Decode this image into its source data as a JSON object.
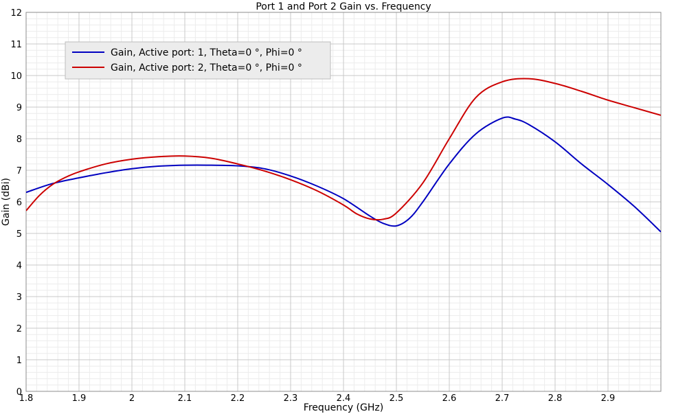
{
  "chart_data": {
    "type": "line",
    "title": "Port 1 and Port 2 Gain vs. Frequency",
    "xlabel": "Frequency (GHz)",
    "ylabel": "Gain (dBi)",
    "xlim": [
      1.8,
      3.0
    ],
    "ylim": [
      0,
      12
    ],
    "x_ticks": [
      1.8,
      1.9,
      2.0,
      2.1,
      2.2,
      2.3,
      2.4,
      2.5,
      2.6,
      2.7,
      2.8,
      2.9
    ],
    "x_tick_labels": [
      "1.8",
      "1.9",
      "2",
      "2.1",
      "2.2",
      "2.3",
      "2.4",
      "2.5",
      "2.6",
      "2.7",
      "2.8",
      "2.9"
    ],
    "y_ticks": [
      0,
      1,
      2,
      3,
      4,
      5,
      6,
      7,
      8,
      9,
      10,
      11,
      12
    ],
    "y_tick_labels": [
      "0",
      "1",
      "2",
      "3",
      "4",
      "5",
      "6",
      "7",
      "8",
      "9",
      "10",
      "11",
      "12"
    ],
    "grid": true,
    "minor_grid": true,
    "legend_position": "top-left",
    "series": [
      {
        "name": "Gain, Active port: 1, Theta=0 °, Phi=0 °",
        "color": "#0000c0",
        "x": [
          1.8,
          1.85,
          1.9,
          1.95,
          2.0,
          2.05,
          2.1,
          2.15,
          2.2,
          2.25,
          2.3,
          2.35,
          2.4,
          2.45,
          2.475,
          2.5,
          2.525,
          2.55,
          2.6,
          2.65,
          2.7,
          2.725,
          2.75,
          2.8,
          2.85,
          2.9,
          2.95,
          3.0
        ],
        "y": [
          6.3,
          6.58,
          6.76,
          6.92,
          7.05,
          7.13,
          7.16,
          7.16,
          7.14,
          7.05,
          6.82,
          6.5,
          6.1,
          5.55,
          5.32,
          5.24,
          5.48,
          6.0,
          7.2,
          8.15,
          8.65,
          8.62,
          8.45,
          7.9,
          7.2,
          6.55,
          5.85,
          5.05
        ]
      },
      {
        "name": "Gain, Active port: 2, Theta=0 °, Phi=0 °",
        "color": "#cc0000",
        "x": [
          1.8,
          1.825,
          1.85,
          1.875,
          1.9,
          1.95,
          2.0,
          2.05,
          2.1,
          2.15,
          2.2,
          2.25,
          2.3,
          2.35,
          2.4,
          2.425,
          2.45,
          2.475,
          2.5,
          2.55,
          2.6,
          2.65,
          2.7,
          2.75,
          2.8,
          2.85,
          2.9,
          2.95,
          3.0
        ],
        "y": [
          5.72,
          6.2,
          6.55,
          6.78,
          6.95,
          7.2,
          7.35,
          7.43,
          7.45,
          7.38,
          7.2,
          6.98,
          6.7,
          6.35,
          5.9,
          5.62,
          5.46,
          5.45,
          5.65,
          6.6,
          8.0,
          9.3,
          9.8,
          9.9,
          9.75,
          9.5,
          9.22,
          8.98,
          8.74
        ]
      }
    ]
  }
}
